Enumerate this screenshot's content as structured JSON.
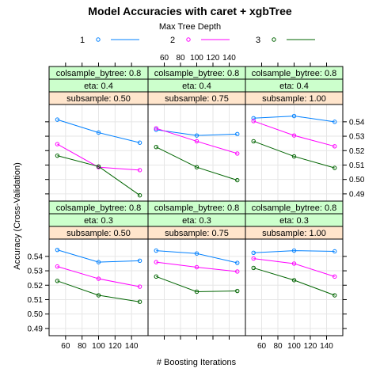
{
  "chart_data": {
    "type": "line",
    "title": "Model Accuracies with caret + xgbTree",
    "xlabel": "# Boosting Iterations",
    "ylabel": "Accuracy (Cross-Validation)",
    "legend_title": "Max Tree Depth",
    "legend_position": "top",
    "x": [
      50,
      100,
      150
    ],
    "xlim": [
      40,
      160
    ],
    "ylim": [
      0.485,
      0.552
    ],
    "x_ticks": [
      60,
      80,
      100,
      120,
      140
    ],
    "y_ticks": [
      0.49,
      0.5,
      0.51,
      0.52,
      0.53,
      0.54
    ],
    "grid": true,
    "colors": {
      "1": "#0080FF",
      "2": "#FF00FF",
      "3": "#006400",
      "strip_col": "#CCFFCC",
      "strip_eta": "#CCFFCC",
      "strip_sub": "#FFE5CC"
    },
    "series_names": [
      "1",
      "2",
      "3"
    ],
    "panels": [
      {
        "row": "top",
        "col": 0,
        "colsample": "colsample_bytree: 0.8",
        "eta": "eta: 0.4",
        "subsample": "subsample: 0.50",
        "series": [
          {
            "name": "1",
            "values": [
              0.5415,
              0.5325,
              0.5255
            ]
          },
          {
            "name": "2",
            "values": [
              0.5245,
              0.5085,
              0.5065
            ]
          },
          {
            "name": "3",
            "values": [
              0.5165,
              0.509,
              0.489
            ]
          }
        ]
      },
      {
        "row": "top",
        "col": 1,
        "colsample": "colsample_bytree: 0.8",
        "eta": "eta: 0.4",
        "subsample": "subsample: 0.75",
        "series": [
          {
            "name": "1",
            "values": [
              0.5345,
              0.5305,
              0.5315
            ]
          },
          {
            "name": "2",
            "values": [
              0.5355,
              0.5265,
              0.518
            ]
          },
          {
            "name": "3",
            "values": [
              0.5225,
              0.5085,
              0.4995
            ]
          }
        ]
      },
      {
        "row": "top",
        "col": 2,
        "colsample": "colsample_bytree: 0.8",
        "eta": "eta: 0.4",
        "subsample": "subsample: 1.00",
        "series": [
          {
            "name": "1",
            "values": [
              0.5425,
              0.544,
              0.54
            ]
          },
          {
            "name": "2",
            "values": [
              0.5405,
              0.5305,
              0.523
            ]
          },
          {
            "name": "3",
            "values": [
              0.5265,
              0.516,
              0.508
            ]
          }
        ]
      },
      {
        "row": "bottom",
        "col": 0,
        "colsample": "colsample_bytree: 0.8",
        "eta": "eta: 0.3",
        "subsample": "subsample: 0.50",
        "series": [
          {
            "name": "1",
            "values": [
              0.5445,
              0.536,
              0.537
            ]
          },
          {
            "name": "2",
            "values": [
              0.533,
              0.5245,
              0.519
            ]
          },
          {
            "name": "3",
            "values": [
              0.523,
              0.513,
              0.5085
            ]
          }
        ]
      },
      {
        "row": "bottom",
        "col": 1,
        "colsample": "colsample_bytree: 0.8",
        "eta": "eta: 0.3",
        "subsample": "subsample: 0.75",
        "series": [
          {
            "name": "1",
            "values": [
              0.544,
              0.542,
              0.5355
            ]
          },
          {
            "name": "2",
            "values": [
              0.536,
              0.5325,
              0.5295
            ]
          },
          {
            "name": "3",
            "values": [
              0.526,
              0.5155,
              0.516
            ]
          }
        ]
      },
      {
        "row": "bottom",
        "col": 2,
        "colsample": "colsample_bytree: 0.8",
        "eta": "eta: 0.3",
        "subsample": "subsample: 1.00",
        "series": [
          {
            "name": "1",
            "values": [
              0.5425,
              0.544,
              0.5435
            ]
          },
          {
            "name": "2",
            "values": [
              0.5385,
              0.535,
              0.526
            ]
          },
          {
            "name": "3",
            "values": [
              0.532,
              0.5235,
              0.513
            ]
          }
        ]
      }
    ]
  }
}
